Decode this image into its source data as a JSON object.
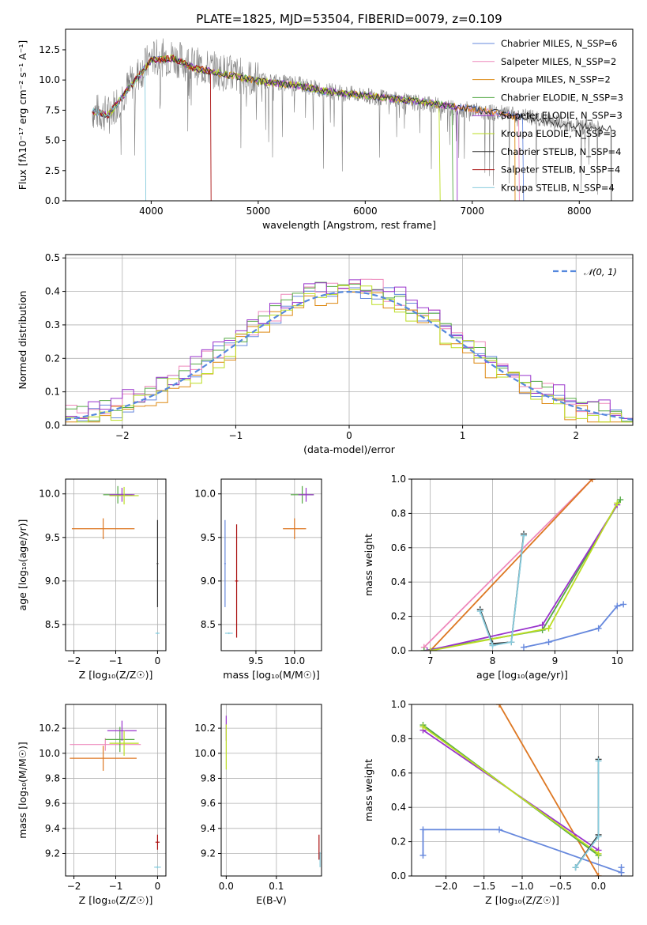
{
  "chart_data": [
    {
      "type": "line",
      "title": "PLATE=1825, MJD=53504, FIBERID=0079, z=0.109",
      "xlabel": "wavelength [Angstrom, rest frame]",
      "ylabel": "Flux [fλ10⁻¹⁷ erg cm⁻² s⁻¹ A⁻¹]",
      "xlim": [
        3200,
        8500
      ],
      "ylim": [
        0,
        14.2
      ],
      "xticks": [
        4000,
        5000,
        6000,
        7000,
        8000
      ],
      "yticks": [
        0.0,
        2.5,
        5.0,
        7.5,
        10.0,
        12.5
      ],
      "ytick_labels": [
        "0.0",
        "2.5",
        "5.0",
        "7.5",
        "10.0",
        "12.5"
      ],
      "legend_position": "top-right",
      "observed_spectrum": {
        "color": "#808080",
        "x": [
          3450,
          3600,
          3800,
          4000,
          4200,
          4400,
          4600,
          4800,
          5000,
          5200,
          5400,
          5600,
          5800,
          6000,
          6200,
          6400,
          6600,
          6800,
          7000,
          7200,
          7400,
          7600,
          7800,
          8000,
          8200
        ],
        "y": [
          7.4,
          7.2,
          9.6,
          11.8,
          11.9,
          11.2,
          10.8,
          10.4,
          10.0,
          9.8,
          9.6,
          9.2,
          8.9,
          8.7,
          8.5,
          8.2,
          8.0,
          7.7,
          7.5,
          7.3,
          7.1,
          6.8,
          6.5,
          6.2,
          6.0
        ]
      },
      "series": [
        {
          "name": "Chabrier MILES, N_SSP=6",
          "color": "#6688dd"
        },
        {
          "name": "Salpeter MILES, N_SSP=2",
          "color": "#ee88bb"
        },
        {
          "name": "Kroupa MILES, N_SSP=2",
          "color": "#dd8811"
        },
        {
          "name": "Chabrier ELODIE, N_SSP=3",
          "color": "#55aa44"
        },
        {
          "name": "Salpeter ELODIE, N_SSP=3",
          "color": "#9933cc"
        },
        {
          "name": "Kroupa ELODIE, N_SSP=3",
          "color": "#bbdd22"
        },
        {
          "name": "Chabrier STELIB, N_SSP=4",
          "color": "#333333"
        },
        {
          "name": "Salpeter STELIB, N_SSP=4",
          "color": "#aa1111"
        },
        {
          "name": "Kroupa STELIB, N_SSP=4",
          "color": "#88ccdd"
        }
      ],
      "model_x": [
        3450,
        3600,
        3800,
        4000,
        4200,
        4400,
        4600,
        4800,
        5000,
        5200,
        5400,
        5600,
        5800,
        6000,
        6200,
        6400,
        6600,
        6800,
        7000,
        7200,
        7400,
        7600,
        7800,
        8000,
        8200
      ],
      "model_y": [
        7.4,
        7.1,
        9.4,
        11.6,
        11.8,
        11.0,
        10.6,
        10.3,
        9.9,
        9.7,
        9.5,
        9.1,
        8.9,
        8.7,
        8.5,
        8.3,
        8.1,
        7.8,
        7.6,
        7.3,
        7.0,
        6.7,
        6.4,
        6.2,
        6.0
      ]
    },
    {
      "type": "step",
      "xlabel": "(data-model)/error",
      "ylabel": "Normed distribution",
      "xlim": [
        -2.5,
        2.5
      ],
      "ylim": [
        0,
        0.51
      ],
      "xticks": [
        -2,
        -1,
        0,
        1,
        2
      ],
      "xtick_labels": [
        "−2",
        "−1",
        "0",
        "1",
        "2"
      ],
      "yticks": [
        0.0,
        0.1,
        0.2,
        0.3,
        0.4,
        0.5
      ],
      "ytick_labels": [
        "0.0",
        "0.1",
        "0.2",
        "0.3",
        "0.4",
        "0.5"
      ],
      "legend": "𝒩(0, 1)",
      "legend_position": "top-right",
      "bin_width": 0.1,
      "histograms": [
        {
          "color": "#6688dd",
          "offset": 0.0
        },
        {
          "color": "#ee88bb",
          "offset": 0.012
        },
        {
          "color": "#dd8811",
          "offset": -0.015
        },
        {
          "color": "#55aa44",
          "offset": 0.008
        },
        {
          "color": "#9933cc",
          "offset": 0.02
        },
        {
          "color": "#bbdd22",
          "offset": -0.01
        }
      ],
      "gaussian_color": "#5588dd"
    },
    {
      "type": "errorbar",
      "xlabel": "Z [log₁₀(Z/Z☉)]",
      "ylabel": "age  [log₁₀(age/yr)]",
      "xlim": [
        -2.2,
        0.2
      ],
      "ylim": [
        8.2,
        10.17
      ],
      "xticks": [
        -2,
        -1,
        0
      ],
      "xtick_labels": [
        "−2",
        "−1",
        "0"
      ],
      "yticks": [
        8.5,
        9.0,
        9.5,
        10.0
      ],
      "ytick_labels": [
        "8.5",
        "9.0",
        "9.5",
        "10.0"
      ],
      "points": [
        {
          "x": -1.3,
          "y": 9.6,
          "xerr": 0.75,
          "yerr": 0.12,
          "color": "#dd7722"
        },
        {
          "x": -0.95,
          "y": 9.99,
          "xerr": 0.35,
          "yerr": 0.1,
          "color": "#55aa44"
        },
        {
          "x": -0.85,
          "y": 9.99,
          "xerr": 0.3,
          "yerr": 0.08,
          "color": "#9933cc"
        },
        {
          "x": -0.8,
          "y": 9.98,
          "xerr": 0.35,
          "yerr": 0.1,
          "color": "#bbdd22"
        },
        {
          "x": 0.0,
          "y": 9.2,
          "xerr": 0.02,
          "yerr": 0.5,
          "color": "#333333"
        },
        {
          "x": 0.0,
          "y": 8.4,
          "xerr": 0.05,
          "yerr": 0.01,
          "color": "#88ccdd"
        }
      ]
    },
    {
      "type": "errorbar",
      "xlabel": "mass [log₁₀(M/M☉)]",
      "xlim": [
        9.05,
        10.35
      ],
      "ylim": [
        8.2,
        10.17
      ],
      "xticks": [
        9.5,
        10.0
      ],
      "xtick_labels": [
        "9.5",
        "10.0"
      ],
      "yticks": [
        8.5,
        9.0,
        9.5,
        10.0
      ],
      "ytick_labels": [
        "8.5",
        "9.0",
        "9.5",
        "10.0"
      ],
      "points": [
        {
          "x": 10.0,
          "y": 9.6,
          "xerr": 0.15,
          "yerr": 0.12,
          "color": "#dd7722"
        },
        {
          "x": 10.1,
          "y": 9.99,
          "xerr": 0.15,
          "yerr": 0.1,
          "color": "#55aa44"
        },
        {
          "x": 10.15,
          "y": 9.99,
          "xerr": 0.1,
          "yerr": 0.08,
          "color": "#9933cc"
        },
        {
          "x": 9.1,
          "y": 9.2,
          "xerr": 0.01,
          "yerr": 0.5,
          "color": "#6688dd"
        },
        {
          "x": 9.25,
          "y": 9.0,
          "xerr": 0.02,
          "yerr": 0.65,
          "color": "#aa1111"
        },
        {
          "x": 9.15,
          "y": 8.4,
          "xerr": 0.05,
          "yerr": 0.01,
          "color": "#88ccdd"
        }
      ]
    },
    {
      "type": "line",
      "xlabel": "age  [log₁₀(age/yr)]",
      "ylabel": "mass weight",
      "xlim": [
        6.7,
        10.25
      ],
      "ylim": [
        0,
        1.0
      ],
      "xticks": [
        7,
        8,
        9,
        10
      ],
      "xtick_labels": [
        "7",
        "8",
        "9",
        "10"
      ],
      "yticks": [
        0.0,
        0.2,
        0.4,
        0.6,
        0.8,
        1.0
      ],
      "ytick_labels": [
        "0.0",
        "0.2",
        "0.4",
        "0.6",
        "0.8",
        "1.0"
      ],
      "series": [
        {
          "color": "#6688dd",
          "x": [
            8.5,
            8.9,
            9.7,
            10.0,
            10.1
          ],
          "y": [
            0.02,
            0.05,
            0.13,
            0.26,
            0.27
          ]
        },
        {
          "color": "#ee88bb",
          "x": [
            6.9,
            9.6
          ],
          "y": [
            0.02,
            1.0
          ]
        },
        {
          "color": "#dd7722",
          "x": [
            7.0,
            9.6
          ],
          "y": [
            0.0,
            1.0
          ]
        },
        {
          "color": "#55aa44",
          "x": [
            6.9,
            8.8,
            10.05
          ],
          "y": [
            0.0,
            0.12,
            0.88
          ]
        },
        {
          "color": "#9933cc",
          "x": [
            6.95,
            8.8,
            10.0
          ],
          "y": [
            0.0,
            0.15,
            0.85
          ]
        },
        {
          "color": "#bbdd22",
          "x": [
            7.0,
            8.9,
            10.0
          ],
          "y": [
            0.0,
            0.13,
            0.86
          ]
        },
        {
          "color": "#333333",
          "x": [
            7.8,
            8.0,
            8.3,
            8.5
          ],
          "y": [
            0.24,
            0.04,
            0.05,
            0.68
          ]
        },
        {
          "color": "#88ccdd",
          "x": [
            7.8,
            8.0,
            8.3,
            8.5
          ],
          "y": [
            0.23,
            0.03,
            0.05,
            0.67
          ]
        }
      ]
    },
    {
      "type": "errorbar",
      "xlabel": "Z [log₁₀(Z/Z☉)]",
      "ylabel": "mass [log₁₀(M/M☉)]",
      "xlim": [
        -2.2,
        0.2
      ],
      "ylim": [
        9.02,
        10.39
      ],
      "xticks": [
        -2,
        -1,
        0
      ],
      "xtick_labels": [
        "−2",
        "−1",
        "0"
      ],
      "yticks": [
        9.2,
        9.4,
        9.6,
        9.8,
        10.0,
        10.2
      ],
      "ytick_labels": [
        "9.2",
        "9.4",
        "9.6",
        "9.8",
        "10.0",
        "10.2"
      ],
      "points": [
        {
          "x": -1.3,
          "y": 9.96,
          "xerr": 0.8,
          "yerr": 0.1,
          "color": "#dd7722"
        },
        {
          "x": -1.25,
          "y": 10.07,
          "xerr": 0.85,
          "yerr": 0.05,
          "color": "#ee88bb"
        },
        {
          "x": -0.9,
          "y": 10.11,
          "xerr": 0.35,
          "yerr": 0.1,
          "color": "#55aa44"
        },
        {
          "x": -0.85,
          "y": 10.18,
          "xerr": 0.35,
          "yerr": 0.08,
          "color": "#9933cc"
        },
        {
          "x": -0.8,
          "y": 10.08,
          "xerr": 0.35,
          "yerr": 0.1,
          "color": "#bbdd22"
        },
        {
          "x": 0.0,
          "y": 9.29,
          "xerr": 0.05,
          "yerr": 0.06,
          "color": "#aa1111"
        },
        {
          "x": 0.0,
          "y": 9.09,
          "xerr": 0.08,
          "yerr": 0.01,
          "color": "#88ccdd"
        }
      ]
    },
    {
      "type": "errorbar",
      "xlabel": "E(B-V)",
      "xlim": [
        -0.01,
        0.19
      ],
      "ylim": [
        9.02,
        10.39
      ],
      "xticks": [
        0.0,
        0.1
      ],
      "xtick_labels": [
        "0.0",
        "0.1"
      ],
      "yticks": [
        9.2,
        9.4,
        9.6,
        9.8,
        10.0,
        10.2
      ],
      "ytick_labels": [
        "9.2",
        "9.4",
        "9.6",
        "9.8",
        "10.0",
        "10.2"
      ],
      "points": [
        {
          "x": 0.0,
          "y": 10.2,
          "xerr": 0.0,
          "yerr": 0.1,
          "color": "#9933cc"
        },
        {
          "x": 0.0,
          "y": 10.05,
          "xerr": 0.0,
          "yerr": 0.18,
          "color": "#bbdd22"
        },
        {
          "x": 0.185,
          "y": 9.25,
          "xerr": 0.0,
          "yerr": 0.1,
          "color": "#aa1111"
        },
        {
          "x": 0.187,
          "y": 9.15,
          "xerr": 0.0,
          "yerr": 0.06,
          "color": "#88ccdd"
        }
      ]
    },
    {
      "type": "line",
      "xlabel": "Z [log₁₀(Z/Z☉)]",
      "ylabel": "mass weight",
      "xlim": [
        -2.45,
        0.45
      ],
      "ylim": [
        0,
        1.0
      ],
      "xticks": [
        -2.0,
        -1.5,
        -1.0,
        -0.5,
        0.0
      ],
      "xtick_labels": [
        "−2.0",
        "−1.5",
        "−1.0",
        "−0.5",
        "0.0"
      ],
      "yticks": [
        0.0,
        0.2,
        0.4,
        0.6,
        0.8,
        1.0
      ],
      "ytick_labels": [
        "0.0",
        "0.2",
        "0.4",
        "0.6",
        "0.8",
        "1.0"
      ],
      "series": [
        {
          "color": "#6688dd",
          "x": [
            -2.3,
            -2.3,
            -1.3,
            0.3,
            0.3
          ],
          "y": [
            0.12,
            0.27,
            0.27,
            0.02,
            0.05
          ]
        },
        {
          "color": "#dd7722",
          "x": [
            -1.3,
            0.0
          ],
          "y": [
            1.0,
            0.0
          ]
        },
        {
          "color": "#55aa44",
          "x": [
            -2.3,
            0.0
          ],
          "y": [
            0.88,
            0.12
          ]
        },
        {
          "color": "#9933cc",
          "x": [
            -2.3,
            0.0
          ],
          "y": [
            0.85,
            0.15
          ]
        },
        {
          "color": "#bbdd22",
          "x": [
            -2.3,
            0.0
          ],
          "y": [
            0.87,
            0.13
          ]
        },
        {
          "color": "#333333",
          "x": [
            -0.3,
            0.0,
            0.0
          ],
          "y": [
            0.05,
            0.24,
            0.68
          ]
        },
        {
          "color": "#88ccdd",
          "x": [
            -0.3,
            0.0,
            0.0
          ],
          "y": [
            0.05,
            0.23,
            0.67
          ]
        }
      ]
    }
  ]
}
